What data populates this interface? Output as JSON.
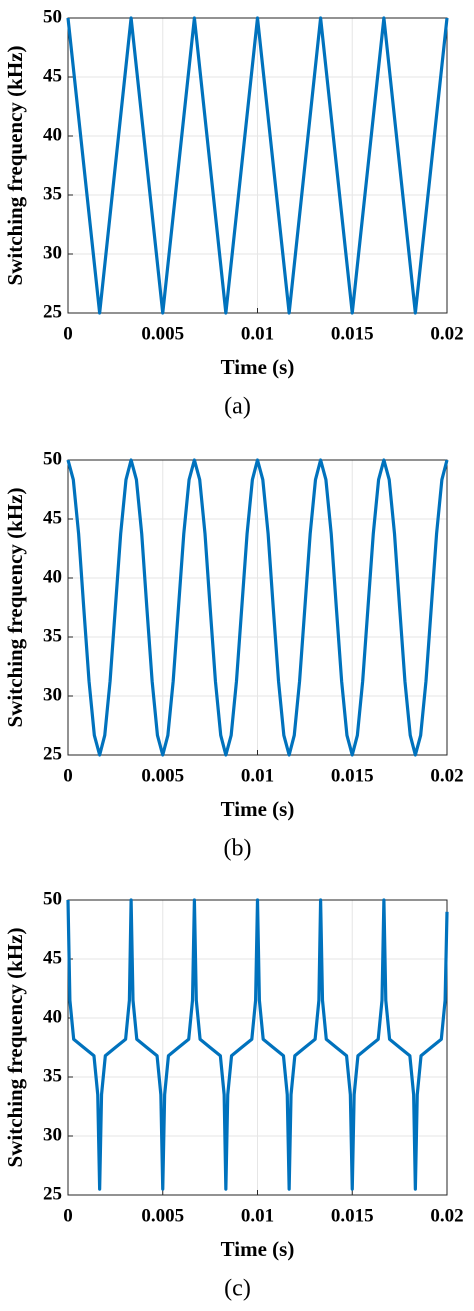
{
  "chart_data": [
    {
      "type": "line",
      "xlabel": "Time (s)",
      "ylabel": "Switching frequency (kHz)",
      "caption": "(a)",
      "xlim": [
        0,
        0.02
      ],
      "ylim": [
        25,
        50
      ],
      "xticks": [
        0,
        0.005,
        0.01,
        0.015,
        0.02
      ],
      "yticks": [
        25,
        30,
        35,
        40,
        45,
        50
      ],
      "grid": true,
      "x": [
        0,
        0.00167,
        0.00333,
        0.005,
        0.00667,
        0.00833,
        0.01,
        0.01167,
        0.01333,
        0.015,
        0.01667,
        0.01833,
        0.02
      ],
      "series": [
        {
          "color": "#0072bd",
          "values": [
            50,
            25,
            50,
            25,
            50,
            25,
            50,
            25,
            50,
            25,
            50,
            25,
            50
          ]
        }
      ]
    },
    {
      "type": "line",
      "xlabel": "Time (s)",
      "ylabel": "Switching frequency (kHz)",
      "caption": "(b)",
      "xlim": [
        0,
        0.02
      ],
      "ylim": [
        25,
        50
      ],
      "xticks": [
        0,
        0.005,
        0.01,
        0.015,
        0.02
      ],
      "yticks": [
        25,
        30,
        35,
        40,
        45,
        50
      ],
      "grid": true,
      "x": [
        0,
        0.00028,
        0.00056,
        0.00083,
        0.00111,
        0.00139,
        0.00167,
        0.00194,
        0.00222,
        0.0025,
        0.00278,
        0.00306,
        0.00333,
        0.00361,
        0.00389,
        0.00416,
        0.00444,
        0.00472,
        0.005,
        0.00527,
        0.00555,
        0.00583,
        0.00611,
        0.00639,
        0.00667,
        0.00695,
        0.00723,
        0.0075,
        0.00778,
        0.00806,
        0.00833,
        0.00861,
        0.00889,
        0.00917,
        0.00945,
        0.00973,
        0.01,
        0.01028,
        0.01056,
        0.01083,
        0.01111,
        0.01139,
        0.01167,
        0.01194,
        0.01222,
        0.0125,
        0.01278,
        0.01306,
        0.01333,
        0.01361,
        0.01389,
        0.01416,
        0.01444,
        0.01472,
        0.015,
        0.01527,
        0.01555,
        0.01583,
        0.01611,
        0.01639,
        0.01667,
        0.01695,
        0.01723,
        0.0175,
        0.01778,
        0.01806,
        0.01833,
        0.01861,
        0.01889,
        0.01917,
        0.01945,
        0.01973,
        0.02
      ],
      "series": [
        {
          "color": "#0072bd",
          "values": [
            50,
            48.33,
            43.75,
            37.5,
            31.25,
            26.67,
            25,
            26.67,
            31.25,
            37.5,
            43.75,
            48.33,
            50,
            48.33,
            43.75,
            37.5,
            31.25,
            26.67,
            25,
            26.67,
            31.25,
            37.5,
            43.75,
            48.33,
            50,
            48.33,
            43.75,
            37.5,
            31.25,
            26.67,
            25,
            26.67,
            31.25,
            37.5,
            43.75,
            48.33,
            50,
            48.33,
            43.75,
            37.5,
            31.25,
            26.67,
            25,
            26.67,
            31.25,
            37.5,
            43.75,
            48.33,
            50,
            48.33,
            43.75,
            37.5,
            31.25,
            26.67,
            25,
            26.67,
            31.25,
            37.5,
            43.75,
            48.33,
            50,
            48.33,
            43.75,
            37.5,
            31.25,
            26.67,
            25,
            26.67,
            31.25,
            37.5,
            43.75,
            48.33,
            50
          ]
        }
      ]
    },
    {
      "type": "line",
      "xlabel": "Time (s)",
      "ylabel": "Switching frequency (kHz)",
      "caption": "(c)",
      "xlim": [
        0,
        0.02
      ],
      "ylim": [
        25,
        50
      ],
      "xticks": [
        0,
        0.005,
        0.01,
        0.015,
        0.02
      ],
      "yticks": [
        25,
        30,
        35,
        40,
        45,
        50
      ],
      "grid": true,
      "x": [
        0,
        0.0001,
        0.0003,
        0.00083,
        0.00137,
        0.00157,
        0.00167,
        0.00177,
        0.00197,
        0.0025,
        0.00304,
        0.00324,
        0.00333,
        0.00343,
        0.00363,
        0.00416,
        0.0047,
        0.0049,
        0.005,
        0.0051,
        0.0053,
        0.00583,
        0.00637,
        0.00657,
        0.00667,
        0.00677,
        0.00697,
        0.0075,
        0.00804,
        0.00824,
        0.00833,
        0.00843,
        0.00863,
        0.00916,
        0.0097,
        0.0099,
        0.01,
        0.0101,
        0.0103,
        0.01083,
        0.01137,
        0.01157,
        0.01167,
        0.01177,
        0.01197,
        0.0125,
        0.01304,
        0.01324,
        0.01333,
        0.01343,
        0.01363,
        0.01416,
        0.0147,
        0.0149,
        0.015,
        0.0151,
        0.0153,
        0.01583,
        0.01637,
        0.01657,
        0.01667,
        0.01677,
        0.01697,
        0.0175,
        0.01804,
        0.01824,
        0.01833,
        0.01843,
        0.01863,
        0.01916,
        0.0197,
        0.0199,
        0.02
      ],
      "series": [
        {
          "color": "#0072bd",
          "values": [
            50,
            41.5,
            38.2,
            37.5,
            36.8,
            33.5,
            25.5,
            33.5,
            36.8,
            37.5,
            38.2,
            41.5,
            50,
            41.5,
            38.2,
            37.5,
            36.8,
            33.5,
            25.5,
            33.5,
            36.8,
            37.5,
            38.2,
            41.5,
            50,
            41.5,
            38.2,
            37.5,
            36.8,
            33.5,
            25.5,
            33.5,
            36.8,
            37.5,
            38.2,
            41.5,
            50,
            41.5,
            38.2,
            37.5,
            36.8,
            33.5,
            25.5,
            33.5,
            36.8,
            37.5,
            38.2,
            41.5,
            50,
            41.5,
            38.2,
            37.5,
            36.8,
            33.5,
            25.5,
            33.5,
            36.8,
            37.5,
            38.2,
            41.5,
            50,
            41.5,
            38.2,
            37.5,
            36.8,
            33.5,
            25.5,
            33.5,
            36.8,
            37.5,
            38.2,
            41.5,
            49
          ]
        }
      ]
    }
  ]
}
